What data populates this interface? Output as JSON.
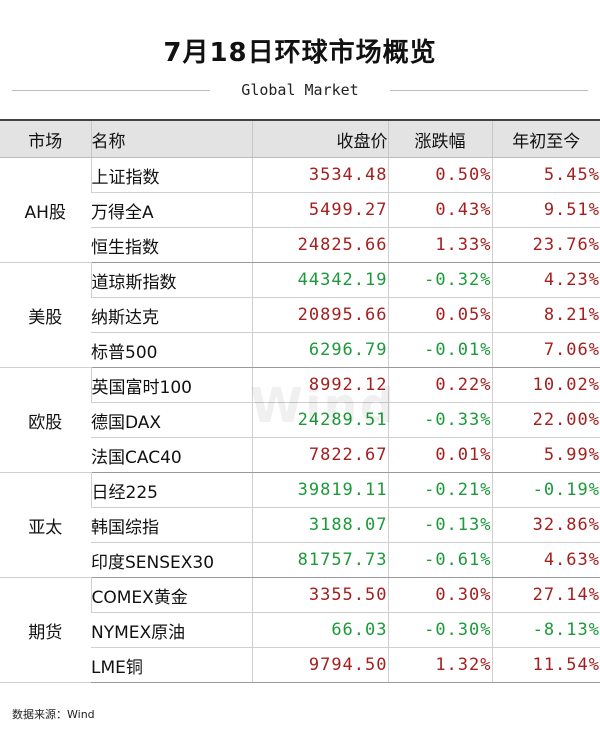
{
  "title": "7月18日环球市场概览",
  "subtitle": "Global Market",
  "watermark": "Wind",
  "headers": {
    "region": "市场",
    "name": "名称",
    "close": "收盘价",
    "change": "涨跌幅",
    "ytd": "年初至今"
  },
  "groups": [
    {
      "region": "AH股",
      "rows": [
        {
          "name": "上证指数",
          "close": "3534.48",
          "change": "0.50%",
          "ytd": "5.45%"
        },
        {
          "name": "万得全A",
          "close": "5499.27",
          "change": "0.43%",
          "ytd": "9.51%"
        },
        {
          "name": "恒生指数",
          "close": "24825.66",
          "change": "1.33%",
          "ytd": "23.76%"
        }
      ]
    },
    {
      "region": "美股",
      "rows": [
        {
          "name": "道琼斯指数",
          "close": "44342.19",
          "change": "-0.32%",
          "ytd": "4.23%"
        },
        {
          "name": "纳斯达克",
          "close": "20895.66",
          "change": "0.05%",
          "ytd": "8.21%"
        },
        {
          "name": "标普500",
          "close": "6296.79",
          "change": "-0.01%",
          "ytd": "7.06%"
        }
      ]
    },
    {
      "region": "欧股",
      "rows": [
        {
          "name": "英国富时100",
          "close": "8992.12",
          "change": "0.22%",
          "ytd": "10.02%"
        },
        {
          "name": "德国DAX",
          "close": "24289.51",
          "change": "-0.33%",
          "ytd": "22.00%"
        },
        {
          "name": "法国CAC40",
          "close": "7822.67",
          "change": "0.01%",
          "ytd": "5.99%"
        }
      ]
    },
    {
      "region": "亚太",
      "rows": [
        {
          "name": "日经225",
          "close": "39819.11",
          "change": "-0.21%",
          "ytd": "-0.19%"
        },
        {
          "name": "韩国综指",
          "close": "3188.07",
          "change": "-0.13%",
          "ytd": "32.86%"
        },
        {
          "name": "印度SENSEX30",
          "close": "81757.73",
          "change": "-0.61%",
          "ytd": "4.63%"
        }
      ]
    },
    {
      "region": "期货",
      "rows": [
        {
          "name": "COMEX黄金",
          "close": "3355.50",
          "change": "0.30%",
          "ytd": "27.14%"
        },
        {
          "name": "NYMEX原油",
          "close": "66.03",
          "change": "-0.30%",
          "ytd": "-8.13%"
        },
        {
          "name": "LME铜",
          "close": "9794.50",
          "change": "1.32%",
          "ytd": "11.54%"
        }
      ]
    }
  ],
  "colors": {
    "up": "#a4201f",
    "down": "#1c9a3a",
    "header_bg": "#e3e3e3"
  },
  "source": "数据来源：Wind"
}
